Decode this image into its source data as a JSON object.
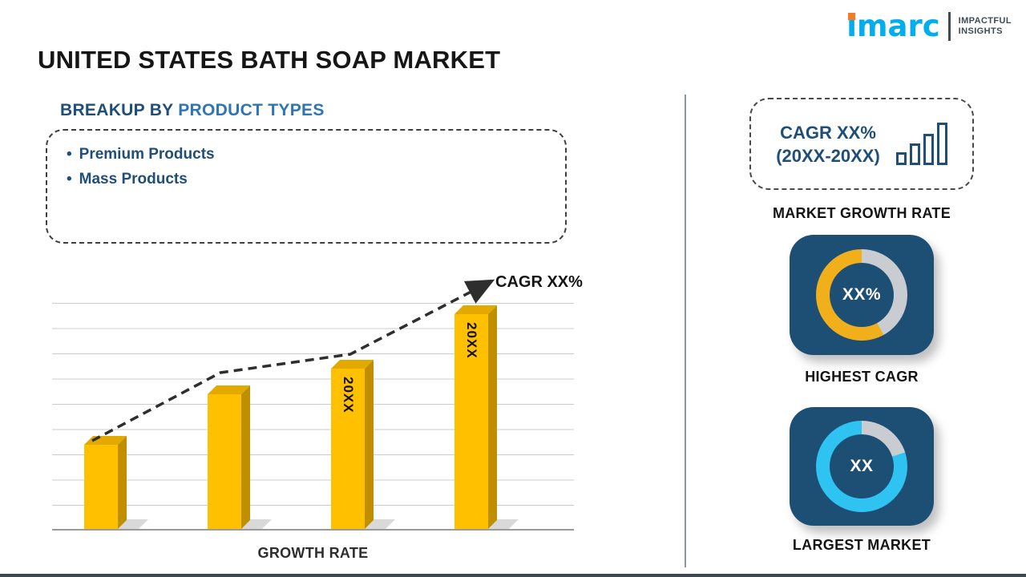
{
  "page": {
    "title": "UNITED STATES BATH SOAP MARKET"
  },
  "logo": {
    "brand": "imarc",
    "tagline_line1": "IMPACTFUL",
    "tagline_line2": "INSIGHTS",
    "brand_color": "#00AEEF",
    "dot_color": "#F47B20"
  },
  "breakup": {
    "heading_prefix": "BREAKUP BY ",
    "heading_highlight": "PRODUCT TYPES",
    "bullet_symbol": "•",
    "items": [
      "Premium Products",
      "Mass Products"
    ]
  },
  "left_chart": {
    "annotation": "CAGR XX%",
    "xlabel": "GROWTH RATE"
  },
  "right_panel": {
    "growth_card": {
      "line1": "CAGR XX%",
      "line2": "(20XX-20XX)"
    },
    "growth_card_label": "MARKET GROWTH RATE",
    "highest_cagr": {
      "center_text": "XX%",
      "label": "HIGHEST CAGR"
    },
    "largest_market": {
      "center_text": "XX",
      "label": "LARGEST MARKET"
    }
  },
  "colors": {
    "navy_card": "#1D4E74",
    "heading_dark": "#1F4E79",
    "heading_highlight": "#2E75B6",
    "bar_gold": "#FFC000",
    "donut_yellow": "#F2AF1C",
    "donut_cyan": "#2FC3F2",
    "donut_gray": "#C9CDD2",
    "logo_cyan": "#00AEEF",
    "logo_orange": "#F47B20"
  },
  "chart_data": [
    {
      "type": "bar",
      "title": "GROWTH RATE",
      "categories": [
        "",
        "",
        "20XX",
        "20XX"
      ],
      "values": [
        105,
        168,
        200,
        268
      ],
      "units": "relative bar heights (axis unlabeled placeholder chart)",
      "bar_color": "#FFC000",
      "xlabel": "GROWTH RATE",
      "ylabel": "",
      "annotation": "CAGR XX%",
      "trend_line": "dashed ascending arrow across bar tops",
      "grid": true,
      "legend": "none"
    },
    {
      "type": "pie",
      "variant": "donut",
      "label": "HIGHEST CAGR",
      "center_text": "XX%",
      "slices": [
        {
          "name": "remainder",
          "pct": 42,
          "color": "#C9CDD2"
        },
        {
          "name": "value",
          "pct": 58,
          "color": "#F2AF1C"
        }
      ]
    },
    {
      "type": "pie",
      "variant": "donut",
      "label": "LARGEST MARKET",
      "center_text": "XX",
      "slices": [
        {
          "name": "remainder",
          "pct": 20,
          "color": "#C9CDD2"
        },
        {
          "name": "value",
          "pct": 80,
          "color": "#2FC3F2"
        }
      ]
    }
  ]
}
